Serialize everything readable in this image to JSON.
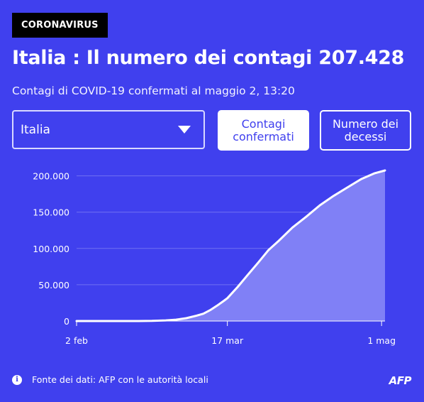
{
  "tag": "CORONAVIRUS",
  "title": "Italia : Il numero dei contagi 207.428",
  "subtitle": "Contagi di COVID-19 confermati al maggio 2, 13:20",
  "controls": {
    "country_select": "Italia",
    "btn_confirmed": "Contagi confermati",
    "btn_deaths": "Numero dei decessi"
  },
  "footer": {
    "source": "Fonte dei dati: AFP con le autorità locali",
    "logo": "AFP"
  },
  "icons": {
    "info": "info-icon",
    "dropdown": "chevron-down-icon"
  },
  "colors": {
    "background": "#4040ee",
    "line": "#ffffff",
    "area_fill": "#8080f6",
    "gridline": "#7070f2"
  },
  "chart_data": {
    "type": "area",
    "title": "",
    "xlabel": "",
    "ylabel": "",
    "x_ticks": [
      "2 feb",
      "17 mar",
      "1 mag"
    ],
    "y_ticks": [
      "0",
      "50.000",
      "100.000",
      "150.000",
      "200.000"
    ],
    "ylim": [
      0,
      207428
    ],
    "grid": true,
    "series": [
      {
        "x": [
          "2020-02-02",
          "2020-02-12",
          "2020-02-20",
          "2020-02-24",
          "2020-02-28",
          "2020-03-02",
          "2020-03-05",
          "2020-03-08",
          "2020-03-10",
          "2020-03-12",
          "2020-03-14",
          "2020-03-16",
          "2020-03-17",
          "2020-03-20",
          "2020-03-23",
          "2020-03-26",
          "2020-03-29",
          "2020-04-01",
          "2020-04-05",
          "2020-04-09",
          "2020-04-13",
          "2020-04-17",
          "2020-04-21",
          "2020-04-25",
          "2020-04-29",
          "2020-05-02"
        ],
        "values": [
          2,
          3,
          4,
          200,
          900,
          1900,
          3900,
          7400,
          10100,
          15100,
          21200,
          27900,
          31500,
          47000,
          63900,
          80500,
          97700,
          110600,
          128900,
          143600,
          159500,
          172400,
          183900,
          195400,
          203600,
          207428
        ]
      }
    ]
  }
}
